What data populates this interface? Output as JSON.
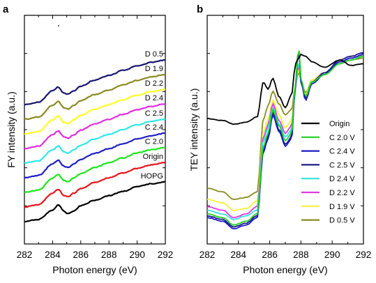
{
  "chart_data": [
    {
      "panel": "a",
      "type": "line",
      "xlabel": "Photon energy (eV)",
      "ylabel": "FY intensity (a.u.)",
      "xlim": [
        282,
        292
      ],
      "x_ticks": [
        282,
        284,
        286,
        288,
        290,
        292
      ],
      "x": [
        282,
        283,
        284,
        284.4,
        284.8,
        285.1,
        285.5,
        286,
        287,
        288,
        289,
        290,
        291,
        292
      ],
      "series": [
        {
          "name": "HOPG",
          "color": "#000000",
          "values": [
            0.0,
            0.6,
            3.0,
            4.4,
            2.7,
            2.1,
            2.8,
            4.2,
            5.6,
            6.8,
            7.9,
            9.1,
            9.9,
            10.4
          ]
        },
        {
          "name": "Origin",
          "color": "#e8141c",
          "values": [
            0.0,
            0.6,
            3.6,
            4.6,
            3.0,
            2.7,
            3.6,
            4.8,
            6.4,
            7.6,
            8.9,
            10.1,
            11.0,
            11.6
          ]
        },
        {
          "name": "C 2.0",
          "color": "#1ee61e",
          "values": [
            0.0,
            0.6,
            3.7,
            4.7,
            3.1,
            2.8,
            3.7,
            4.9,
            6.5,
            7.7,
            9.0,
            10.3,
            11.1,
            11.7
          ]
        },
        {
          "name": "C 2.4",
          "color": "#1f1fc4",
          "values": [
            0.0,
            0.6,
            3.6,
            4.6,
            3.0,
            2.7,
            3.6,
            4.8,
            6.4,
            7.6,
            8.9,
            10.1,
            11.0,
            11.6
          ]
        },
        {
          "name": "C 2.5",
          "color": "#2ee8e8",
          "values": [
            0.0,
            0.6,
            3.5,
            4.5,
            3.0,
            2.6,
            3.5,
            4.7,
            6.3,
            7.5,
            8.8,
            10.0,
            10.9,
            11.5
          ]
        },
        {
          "name": "D 2.4",
          "color": "#e02ee0",
          "values": [
            0.0,
            0.6,
            3.6,
            4.6,
            3.0,
            2.7,
            3.6,
            4.8,
            6.4,
            7.6,
            8.9,
            10.1,
            11.0,
            11.6
          ]
        },
        {
          "name": "D 2.2",
          "color": "#ffff22",
          "values": [
            0.0,
            0.6,
            3.6,
            4.6,
            3.0,
            2.7,
            3.6,
            4.8,
            6.4,
            7.6,
            8.9,
            10.1,
            11.0,
            11.6
          ]
        },
        {
          "name": "D 1.9",
          "color": "#8a8a22",
          "values": [
            0.0,
            0.6,
            3.6,
            4.6,
            3.0,
            2.7,
            3.6,
            4.8,
            6.4,
            7.6,
            8.9,
            10.1,
            11.0,
            11.6
          ]
        },
        {
          "name": "D 0.5",
          "color": "#16166e",
          "values": [
            0.0,
            0.6,
            3.6,
            4.6,
            3.0,
            2.7,
            3.6,
            4.8,
            6.4,
            7.6,
            8.9,
            10.1,
            11.0,
            11.6
          ]
        }
      ]
    },
    {
      "panel": "b",
      "type": "line",
      "xlabel": "Photon energy (eV)",
      "ylabel": "TEY intensity (a.u.)",
      "xlim": [
        282,
        292
      ],
      "x_ticks": [
        282,
        284,
        286,
        288,
        290,
        292
      ],
      "x": [
        282,
        283,
        283.7,
        284.5,
        285.2,
        285.6,
        285.9,
        286.2,
        286.6,
        287.0,
        287.4,
        287.65,
        287.85,
        288.0,
        288.3,
        288.7,
        289.5,
        290.5,
        291.2,
        292
      ],
      "series": [
        {
          "name": "Origin",
          "color": "#000000",
          "values": [
            0.6,
            0.59,
            0.57,
            0.58,
            0.61,
            0.8,
            0.76,
            0.82,
            0.72,
            0.66,
            0.73,
            0.9,
            0.93,
            0.95,
            0.94,
            0.91,
            0.88,
            0.92,
            0.89,
            0.9
          ]
        },
        {
          "name": "C 2.0 V",
          "color": "#1fd31f",
          "values": [
            0.08,
            0.06,
            0.02,
            0.04,
            0.08,
            0.45,
            0.52,
            0.65,
            0.56,
            0.48,
            0.52,
            0.8,
            1.0,
            0.82,
            0.72,
            0.8,
            0.84,
            0.9,
            0.92,
            0.94
          ]
        },
        {
          "name": "C 2.4 V",
          "color": "#1a1ac8",
          "values": [
            0.06,
            0.04,
            0.0,
            0.02,
            0.06,
            0.42,
            0.49,
            0.62,
            0.53,
            0.45,
            0.49,
            0.78,
            0.99,
            0.8,
            0.7,
            0.79,
            0.84,
            0.91,
            0.93,
            0.95
          ]
        },
        {
          "name": "C 2.5 V",
          "color": "#1a1a8a",
          "values": [
            0.07,
            0.05,
            0.01,
            0.03,
            0.07,
            0.43,
            0.5,
            0.63,
            0.54,
            0.46,
            0.5,
            0.79,
            0.98,
            0.81,
            0.71,
            0.8,
            0.85,
            0.92,
            0.94,
            0.96
          ]
        },
        {
          "name": "D 2.4 V",
          "color": "#33e0e0",
          "values": [
            0.1,
            0.08,
            0.05,
            0.07,
            0.1,
            0.48,
            0.55,
            0.66,
            0.57,
            0.5,
            0.54,
            0.78,
            0.92,
            0.8,
            0.72,
            0.8,
            0.84,
            0.9,
            0.92,
            0.94
          ]
        },
        {
          "name": "D 2.2 V",
          "color": "#e03ae0",
          "values": [
            0.12,
            0.1,
            0.06,
            0.08,
            0.12,
            0.5,
            0.57,
            0.68,
            0.59,
            0.52,
            0.56,
            0.78,
            0.9,
            0.8,
            0.72,
            0.8,
            0.85,
            0.91,
            0.93,
            0.95
          ]
        },
        {
          "name": "D 1.9 V",
          "color": "#f2f23a",
          "values": [
            0.16,
            0.14,
            0.1,
            0.11,
            0.15,
            0.53,
            0.6,
            0.7,
            0.62,
            0.55,
            0.59,
            0.78,
            0.88,
            0.8,
            0.73,
            0.81,
            0.85,
            0.91,
            0.93,
            0.95
          ]
        },
        {
          "name": "D 0.5 V",
          "color": "#8a8a1f",
          "values": [
            0.22,
            0.2,
            0.16,
            0.17,
            0.2,
            0.6,
            0.67,
            0.75,
            0.68,
            0.62,
            0.65,
            0.78,
            0.86,
            0.8,
            0.74,
            0.81,
            0.85,
            0.9,
            0.92,
            0.93
          ]
        }
      ]
    }
  ]
}
